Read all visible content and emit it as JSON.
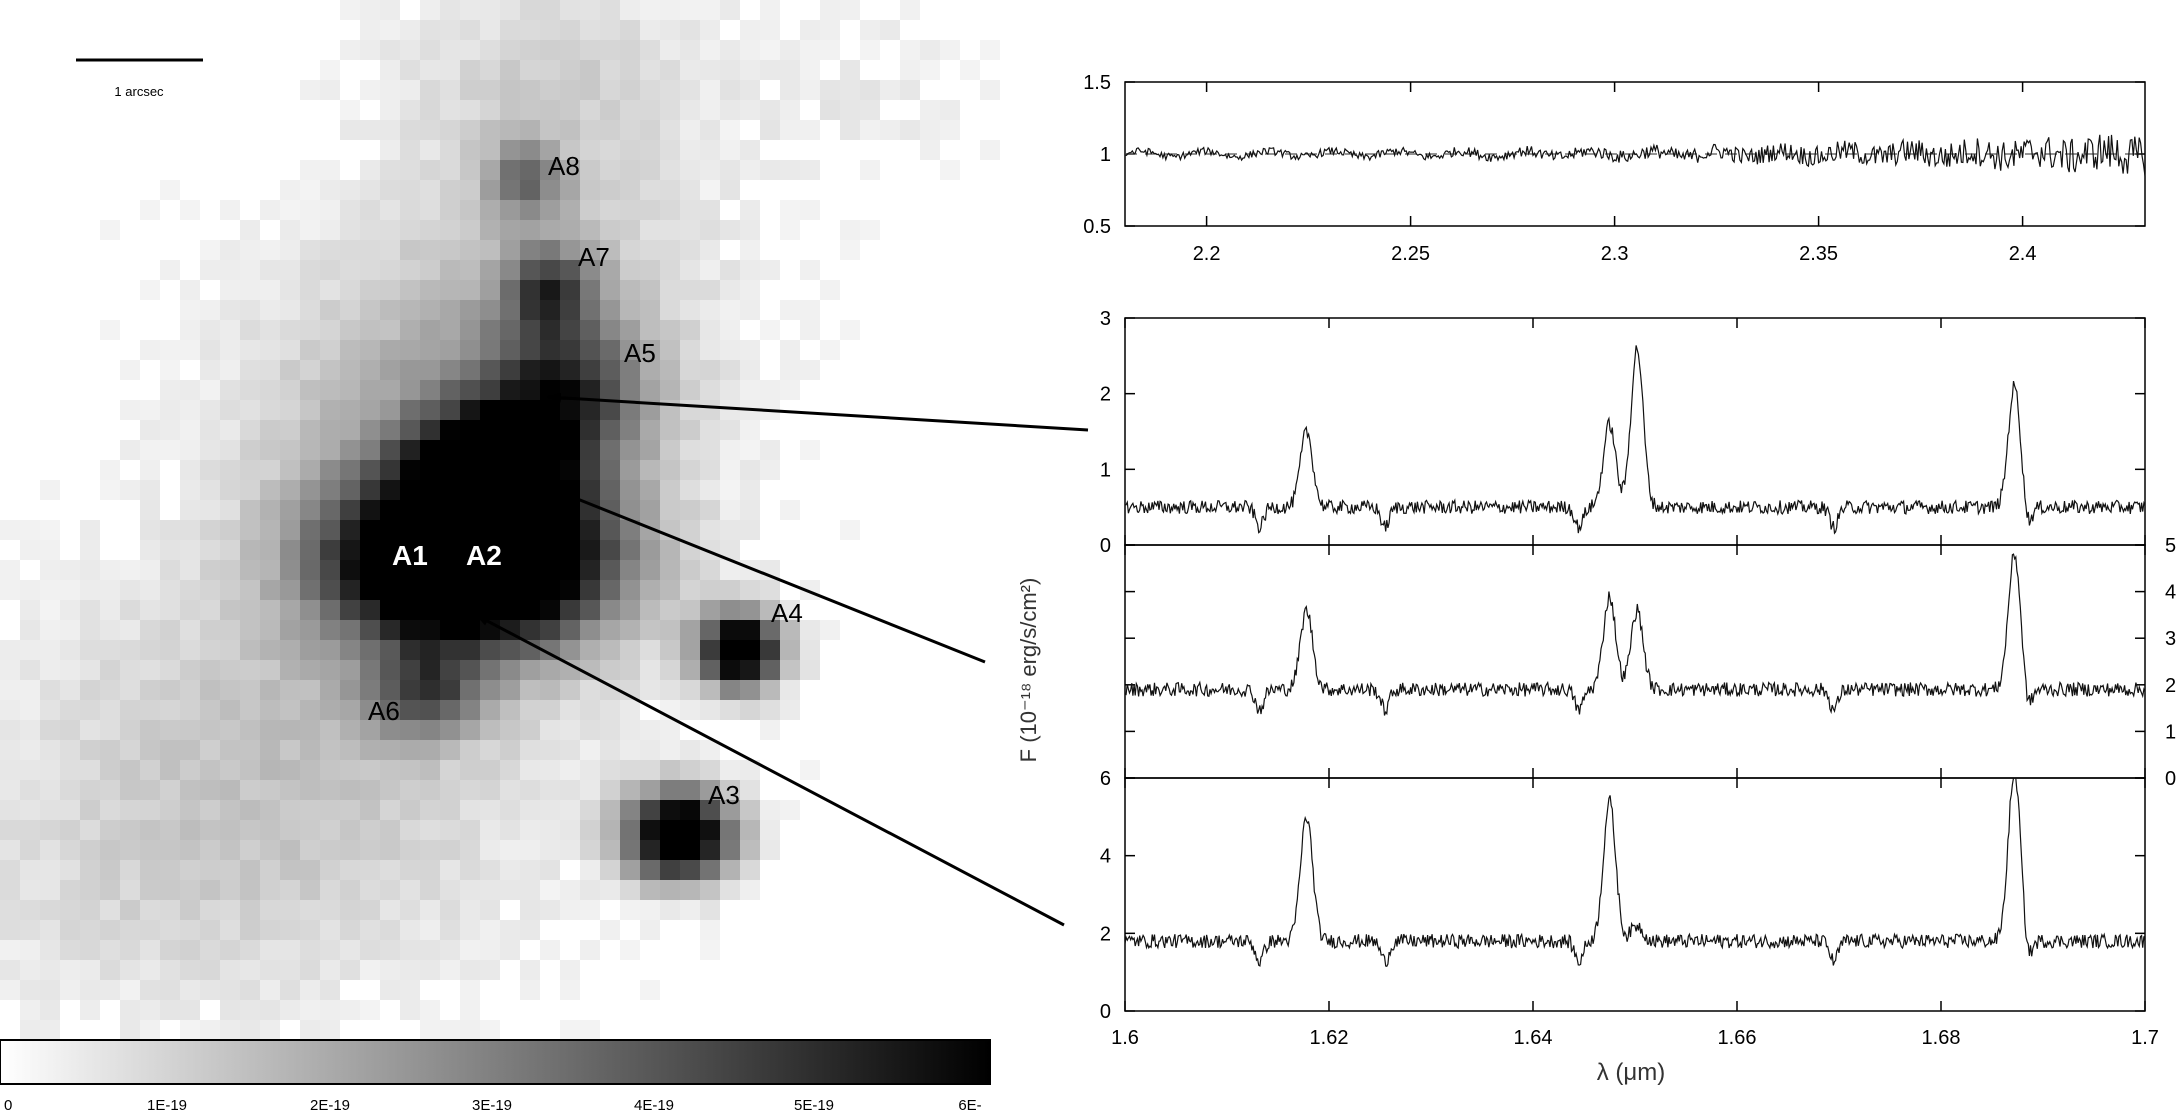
{
  "image_panel": {
    "scale_bar_label": "1 arcsec",
    "source_labels": [
      "A8",
      "A7",
      "A5",
      "A1",
      "A2",
      "A4",
      "A6",
      "A3"
    ],
    "colorbar": {
      "tick_labels": [
        "0",
        "1E-19",
        "2E-19",
        "3E-19",
        "4E-19",
        "5E-19",
        "6E-"
      ]
    }
  },
  "spectra": {
    "shared_ylabel": "F (10⁻¹⁸ erg/s/cm²)",
    "shared_xlabel": "λ (μm)"
  },
  "chart_data": [
    {
      "type": "line",
      "panel": "top-ratio",
      "xlim": [
        2.18,
        2.43
      ],
      "ylim": [
        0.5,
        1.5
      ],
      "x_ticks": [
        "2.2",
        "2.25",
        "2.3",
        "2.35",
        "2.4"
      ],
      "y_ticks": [
        "0.5",
        "1",
        "1.5"
      ],
      "reference_line_y": 1,
      "series": [
        {
          "values_note": "noisy ratio spectrum around 1",
          "style": "solid"
        }
      ]
    },
    {
      "type": "line",
      "panel": "upper-spectrum",
      "xlim": [
        1.6,
        1.7
      ],
      "ylim": [
        0,
        3
      ],
      "y_ticks": [
        "0",
        "1",
        "2",
        "3"
      ],
      "continuum": 0.5,
      "lines": [
        {
          "x": 1.6178,
          "peak": 1.5
        },
        {
          "x": 1.6475,
          "peak": 1.6
        },
        {
          "x": 1.6502,
          "peak": 2.6
        },
        {
          "x": 1.6872,
          "peak": 2.1
        }
      ]
    },
    {
      "type": "line",
      "panel": "middle-spectrum",
      "xlim": [
        1.6,
        1.7
      ],
      "ylim": [
        0,
        5
      ],
      "y_ticks_right": [
        "0",
        "1",
        "2",
        "3",
        "4",
        "5"
      ],
      "continuum": 1.9,
      "lines": [
        {
          "x": 1.6178,
          "peak": 3.6
        },
        {
          "x": 1.6475,
          "peak": 3.9
        },
        {
          "x": 1.6502,
          "peak": 3.6
        },
        {
          "x": 1.6872,
          "peak": 4.8
        }
      ]
    },
    {
      "type": "line",
      "panel": "lower-spectrum",
      "xlim": [
        1.6,
        1.7
      ],
      "ylim": [
        0,
        6
      ],
      "x_ticks": [
        "1.6",
        "1.62",
        "1.64",
        "1.66",
        "1.68",
        "1.7"
      ],
      "y_ticks": [
        "0",
        "2",
        "4",
        "6"
      ],
      "continuum": 1.8,
      "lines": [
        {
          "x": 1.6178,
          "peak": 5.0
        },
        {
          "x": 1.6475,
          "peak": 5.4
        },
        {
          "x": 1.6502,
          "peak": 2.2
        },
        {
          "x": 1.6872,
          "peak": 6.2
        }
      ]
    }
  ]
}
